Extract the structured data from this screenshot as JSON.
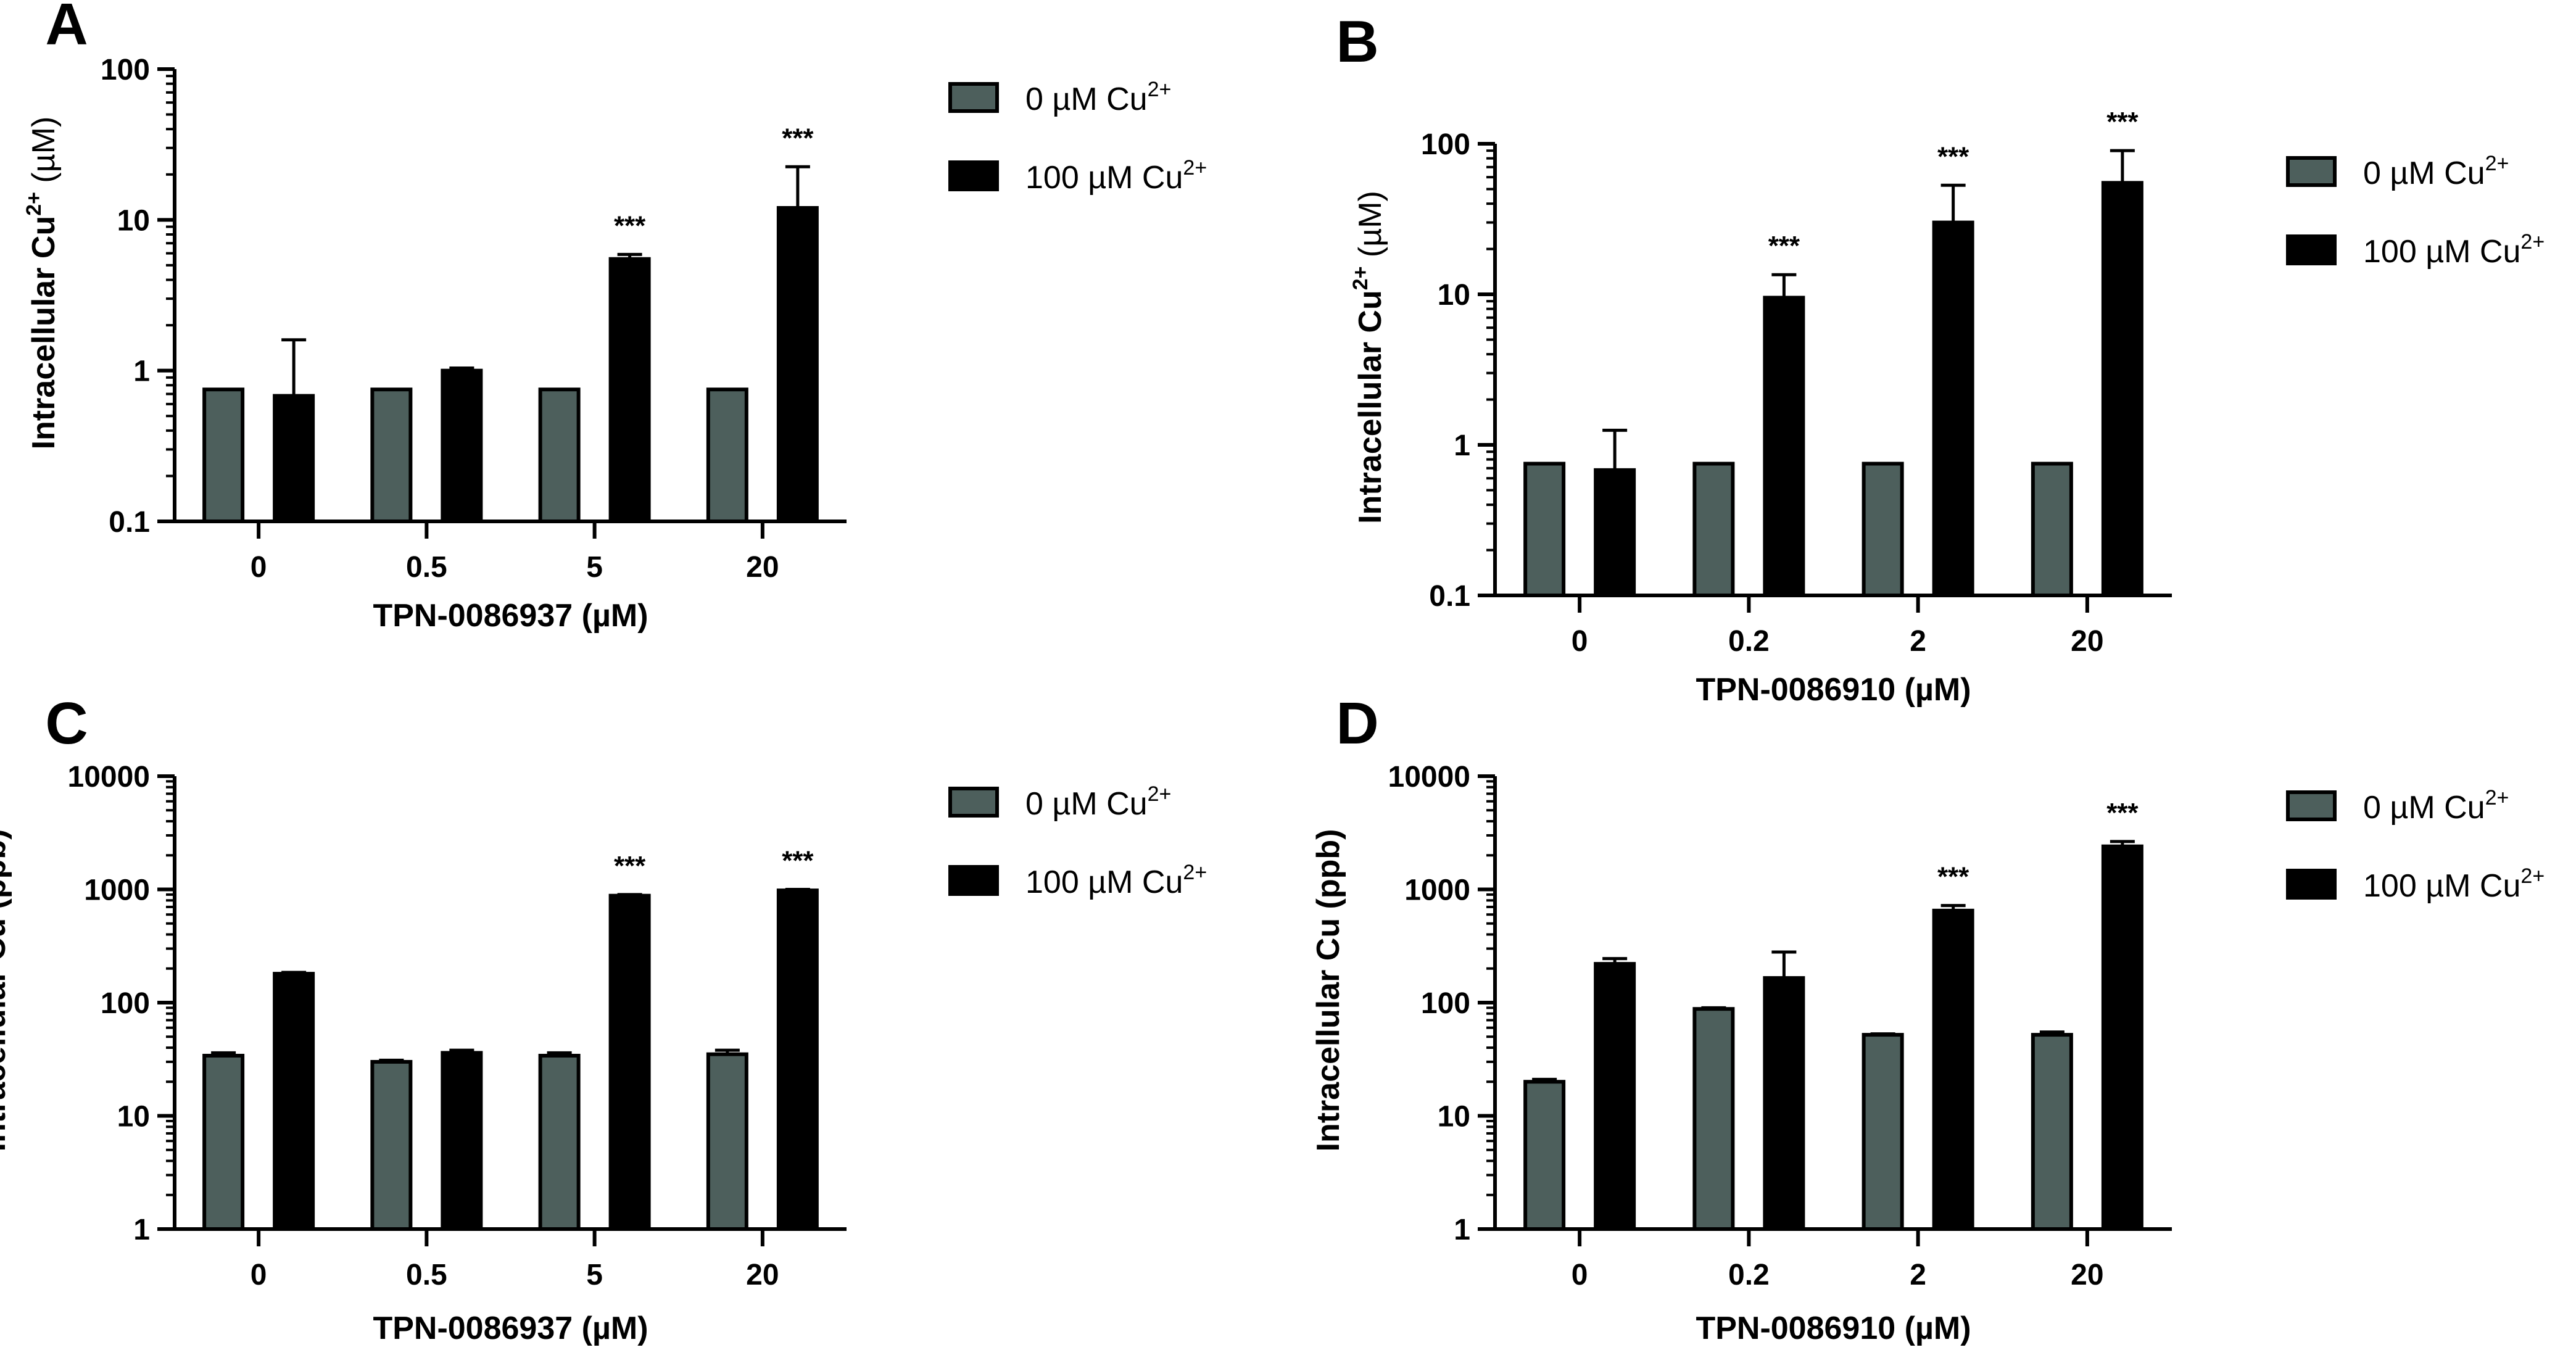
{
  "colors": {
    "control_fill": "#4d5f5c",
    "treated_fill": "#000000",
    "axis": "#000000"
  },
  "chart_data": [
    {
      "panel": "A",
      "type": "bar",
      "yscale": "log",
      "ylim": [
        0.1,
        100
      ],
      "yticks": [
        {
          "v": 0.1,
          "label": "0.1"
        },
        {
          "v": 1,
          "label": "1"
        },
        {
          "v": 10,
          "label": "10"
        },
        {
          "v": 100,
          "label": "100"
        }
      ],
      "ylabel_main": "Intracellular Cu",
      "ylabel_sup": "2+",
      "ylabel_unit": " (µM)",
      "xlabel": "TPN-0086937 (µM)",
      "categories": [
        "0",
        "0.5",
        "5",
        "20"
      ],
      "series": [
        {
          "name": "0 µM Cu",
          "sup": "2+",
          "color": "#4d5f5c",
          "values": [
            0.75,
            0.75,
            0.75,
            0.75
          ],
          "err": [
            0,
            0,
            0,
            0
          ]
        },
        {
          "name": "100 µM Cu",
          "sup": "2+",
          "color": "#000000",
          "values": [
            0.68,
            1.0,
            5.5,
            12
          ],
          "err": [
            1.6,
            1.04,
            5.9,
            22.5
          ]
        }
      ],
      "significance": [
        "",
        "",
        "***",
        "***"
      ]
    },
    {
      "panel": "B",
      "type": "bar",
      "yscale": "log",
      "ylim": [
        0.1,
        100
      ],
      "yticks": [
        {
          "v": 0.1,
          "label": "0.1"
        },
        {
          "v": 1,
          "label": "1"
        },
        {
          "v": 10,
          "label": "10"
        },
        {
          "v": 100,
          "label": "100"
        }
      ],
      "ylabel_main": "Intracellular Cu",
      "ylabel_sup": "2+",
      "ylabel_unit": " (µM)",
      "xlabel": "TPN-0086910 (µM)",
      "categories": [
        "0",
        "0.2",
        "2",
        "20"
      ],
      "series": [
        {
          "name": "0 µM Cu",
          "sup": "2+",
          "color": "#4d5f5c",
          "values": [
            0.75,
            0.75,
            0.75,
            0.75
          ],
          "err": [
            0,
            0,
            0,
            0
          ]
        },
        {
          "name": "100 µM Cu",
          "sup": "2+",
          "color": "#000000",
          "values": [
            0.68,
            9.5,
            30,
            55
          ],
          "err": [
            1.25,
            13.5,
            53,
            90
          ]
        }
      ],
      "significance": [
        "",
        "***",
        "***",
        "***"
      ]
    },
    {
      "panel": "C",
      "type": "bar",
      "yscale": "log",
      "ylim": [
        1,
        10000
      ],
      "yticks": [
        {
          "v": 1,
          "label": "1"
        },
        {
          "v": 10,
          "label": "10"
        },
        {
          "v": 100,
          "label": "100"
        },
        {
          "v": 1000,
          "label": "1000"
        },
        {
          "v": 10000,
          "label": "10000"
        }
      ],
      "ylabel_main": "Intracellular Cu (ppb)",
      "ylabel_sup": "",
      "ylabel_unit": "",
      "xlabel": "TPN-0086937 (µM)",
      "categories": [
        "0",
        "0.5",
        "5",
        "20"
      ],
      "series": [
        {
          "name": "0 µM Cu",
          "sup": "2+",
          "color": "#4d5f5c",
          "values": [
            34,
            30,
            34,
            35
          ],
          "err": [
            36,
            31,
            36,
            38
          ]
        },
        {
          "name": "100 µM Cu",
          "sup": "2+",
          "color": "#000000",
          "values": [
            180,
            36,
            880,
            980
          ],
          "err": [
            185,
            38,
            900,
            1000
          ]
        }
      ],
      "significance": [
        "",
        "",
        "***",
        "***"
      ]
    },
    {
      "panel": "D",
      "type": "bar",
      "yscale": "log",
      "ylim": [
        1,
        10000
      ],
      "yticks": [
        {
          "v": 1,
          "label": "1"
        },
        {
          "v": 10,
          "label": "10"
        },
        {
          "v": 100,
          "label": "100"
        },
        {
          "v": 1000,
          "label": "1000"
        },
        {
          "v": 10000,
          "label": "10000"
        }
      ],
      "ylabel_main": "Intracellular Cu  (ppb)",
      "ylabel_sup": "",
      "ylabel_unit": "",
      "xlabel": "TPN-0086910 (µM)",
      "categories": [
        "0",
        "0.2",
        "2",
        "20"
      ],
      "series": [
        {
          "name": "0 µM Cu",
          "sup": "2+",
          "color": "#4d5f5c",
          "values": [
            20,
            88,
            52,
            52
          ],
          "err": [
            21,
            90,
            53,
            55
          ]
        },
        {
          "name": "100 µM Cu",
          "sup": "2+",
          "color": "#000000",
          "values": [
            220,
            165,
            650,
            2400
          ],
          "err": [
            245,
            280,
            720,
            2650
          ]
        }
      ],
      "significance": [
        "",
        "",
        "***",
        "***"
      ]
    }
  ]
}
